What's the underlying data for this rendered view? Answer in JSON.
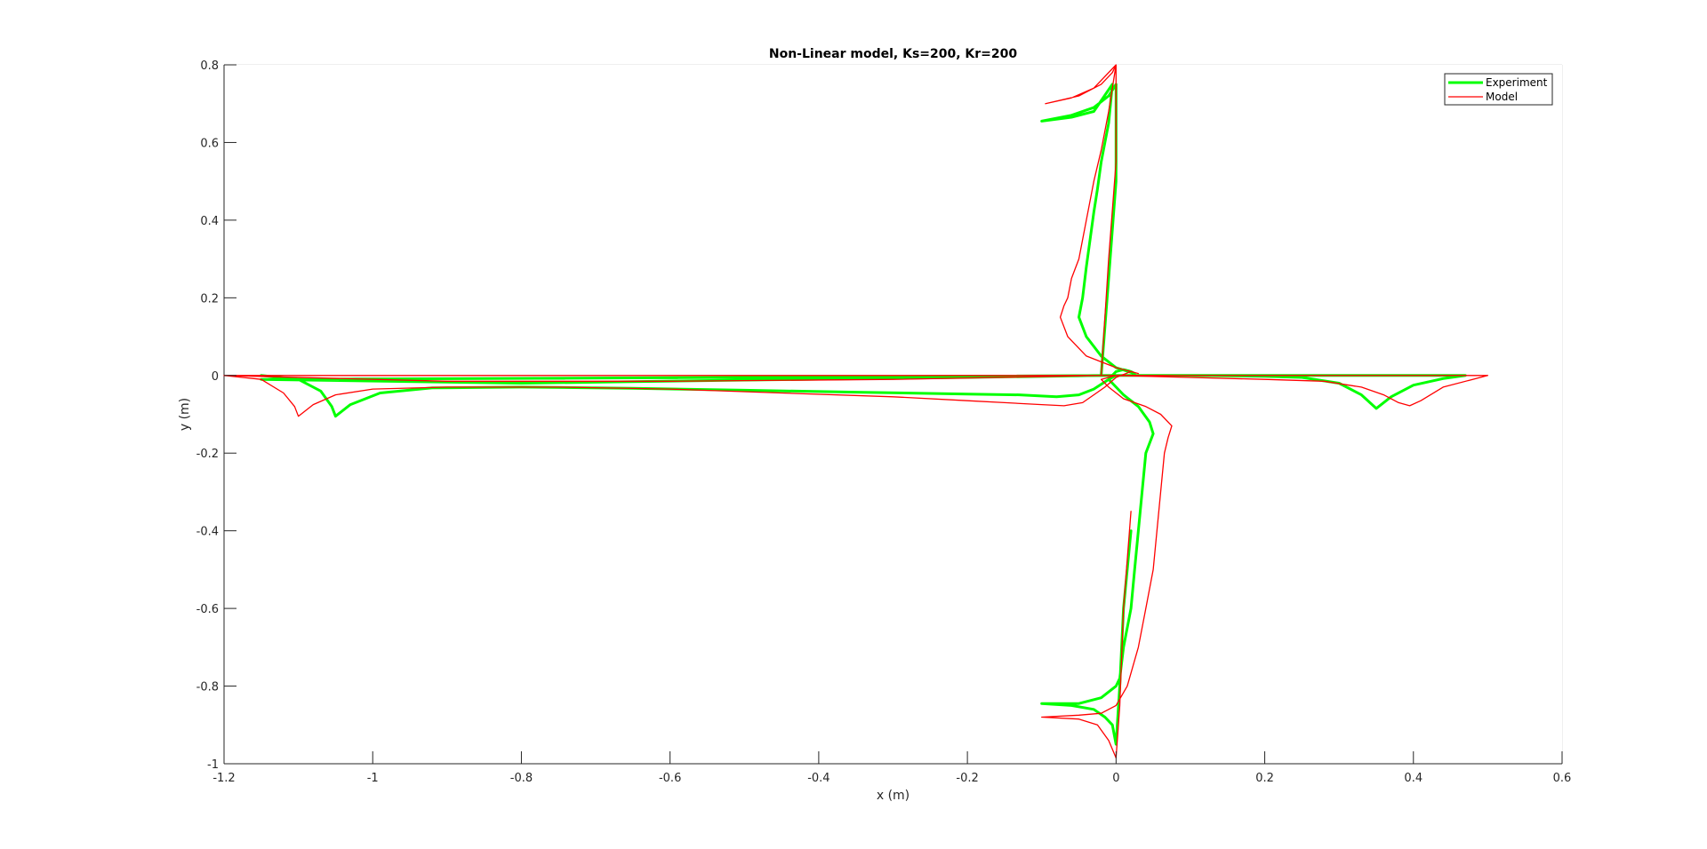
{
  "chart_data": {
    "type": "line",
    "title": "Non-Linear model, Ks=200, Kr=200",
    "xlabel": "x (m)",
    "ylabel": "y (m)",
    "xlim": [
      -1.2,
      0.6
    ],
    "ylim": [
      -1,
      0.8
    ],
    "xticks": [
      -1.2,
      -1,
      -0.8,
      -0.6,
      -0.4,
      -0.2,
      0,
      0.2,
      0.4,
      0.6
    ],
    "yticks": [
      -1,
      -0.8,
      -0.6,
      -0.4,
      -0.2,
      0,
      0.2,
      0.4,
      0.6,
      0.8
    ],
    "grid": true,
    "legend_position": "top-right",
    "series": [
      {
        "name": "Experiment",
        "color": "#00ff00",
        "x": [
          -1.15,
          -1.1,
          -1.07,
          -1.055,
          -1.05,
          -1.03,
          -0.99,
          -0.92,
          -0.8,
          -0.65,
          -0.5,
          -0.35,
          -0.2,
          -0.13,
          -0.08,
          -0.05,
          -0.03,
          -0.01,
          0,
          0.01,
          0.02,
          0.025,
          0.0,
          -0.02,
          -0.04,
          -0.05,
          -0.045,
          -0.04,
          -0.035,
          -0.03,
          -0.025,
          -0.02,
          -0.015,
          -0.01,
          -0.005,
          -0.03,
          -0.06,
          -0.1,
          -0.06,
          -0.03,
          -0.01,
          0,
          0.0,
          -0.01,
          -0.02,
          -0.2,
          -0.5,
          -0.8,
          -1.15,
          -0.5,
          0,
          0.1,
          0.2,
          0.25,
          0.3,
          0.33,
          0.35,
          0.37,
          0.4,
          0.44,
          0.47,
          0.4,
          0.2,
          0,
          -0.01,
          -0.005,
          0.01,
          0.03,
          0.045,
          0.05,
          0.04,
          0.035,
          0.03,
          0.025,
          0.02,
          0.01,
          0.005,
          0,
          -0.02,
          -0.05,
          -0.1,
          -0.06,
          -0.03,
          -0.015,
          -0.005,
          0,
          0.005,
          0.01,
          0.02
        ],
        "y": [
          0,
          -0.01,
          -0.04,
          -0.08,
          -0.105,
          -0.075,
          -0.045,
          -0.032,
          -0.03,
          -0.033,
          -0.038,
          -0.043,
          -0.048,
          -0.05,
          -0.055,
          -0.05,
          -0.035,
          -0.01,
          0.01,
          0.015,
          0.01,
          0.005,
          0.02,
          0.05,
          0.1,
          0.15,
          0.2,
          0.28,
          0.35,
          0.42,
          0.48,
          0.55,
          0.6,
          0.65,
          0.75,
          0.68,
          0.665,
          0.655,
          0.67,
          0.69,
          0.72,
          0.75,
          0.5,
          0.25,
          0,
          -0.005,
          -0.012,
          -0.02,
          -0.01,
          -0.005,
          0,
          0,
          -0.002,
          -0.005,
          -0.02,
          -0.05,
          -0.085,
          -0.055,
          -0.025,
          -0.008,
          0,
          0,
          0,
          0,
          -0.01,
          -0.02,
          -0.05,
          -0.08,
          -0.12,
          -0.15,
          -0.2,
          -0.3,
          -0.4,
          -0.5,
          -0.6,
          -0.7,
          -0.78,
          -0.8,
          -0.83,
          -0.845,
          -0.845,
          -0.85,
          -0.86,
          -0.88,
          -0.9,
          -0.95,
          -0.8,
          -0.6,
          -0.4
        ]
      },
      {
        "name": "Model",
        "color": "#ff0000",
        "x": [
          -1.2,
          -1.15,
          -1.12,
          -1.105,
          -1.1,
          -1.08,
          -1.05,
          -1.0,
          -0.9,
          -0.75,
          -0.6,
          -0.45,
          -0.3,
          -0.2,
          -0.15,
          -0.1,
          -0.07,
          -0.045,
          -0.03,
          -0.015,
          0,
          0.02,
          0.03,
          0.0,
          -0.04,
          -0.065,
          -0.075,
          -0.07,
          -0.065,
          -0.06,
          -0.05,
          -0.04,
          -0.03,
          -0.02,
          -0.01,
          0,
          -0.03,
          -0.06,
          -0.095,
          -0.05,
          -0.02,
          -0.005,
          0,
          0.0,
          -0.01,
          -0.02,
          -0.3,
          -0.6,
          -0.9,
          -1.2,
          -0.5,
          0,
          0.1,
          0.2,
          0.28,
          0.33,
          0.36,
          0.38,
          0.395,
          0.41,
          0.44,
          0.5,
          0.45,
          0.2,
          0,
          -0.02,
          -0.01,
          0.01,
          0.04,
          0.06,
          0.075,
          0.07,
          0.065,
          0.06,
          0.055,
          0.05,
          0.04,
          0.03,
          0.015,
          0,
          -0.02,
          -0.05,
          -0.1,
          -0.05,
          -0.025,
          -0.01,
          0,
          0.005,
          0.01,
          0.02
        ],
        "y": [
          0,
          -0.01,
          -0.045,
          -0.08,
          -0.105,
          -0.075,
          -0.05,
          -0.035,
          -0.03,
          -0.03,
          -0.035,
          -0.045,
          -0.055,
          -0.065,
          -0.07,
          -0.075,
          -0.078,
          -0.07,
          -0.05,
          -0.03,
          -0.005,
          0.01,
          0.005,
          0.02,
          0.05,
          0.1,
          0.15,
          0.18,
          0.2,
          0.25,
          0.3,
          0.4,
          0.5,
          0.58,
          0.68,
          0.8,
          0.74,
          0.715,
          0.7,
          0.72,
          0.75,
          0.78,
          0.8,
          0.55,
          0.3,
          0,
          -0.01,
          -0.015,
          -0.015,
          0,
          0,
          0,
          -0.005,
          -0.01,
          -0.015,
          -0.03,
          -0.05,
          -0.07,
          -0.078,
          -0.065,
          -0.03,
          0,
          0,
          0,
          0,
          -0.01,
          -0.03,
          -0.06,
          -0.08,
          -0.1,
          -0.13,
          -0.16,
          -0.2,
          -0.3,
          -0.4,
          -0.5,
          -0.6,
          -0.7,
          -0.8,
          -0.85,
          -0.87,
          -0.875,
          -0.88,
          -0.885,
          -0.9,
          -0.94,
          -0.985,
          -0.85,
          -0.6,
          -0.35
        ]
      }
    ]
  }
}
